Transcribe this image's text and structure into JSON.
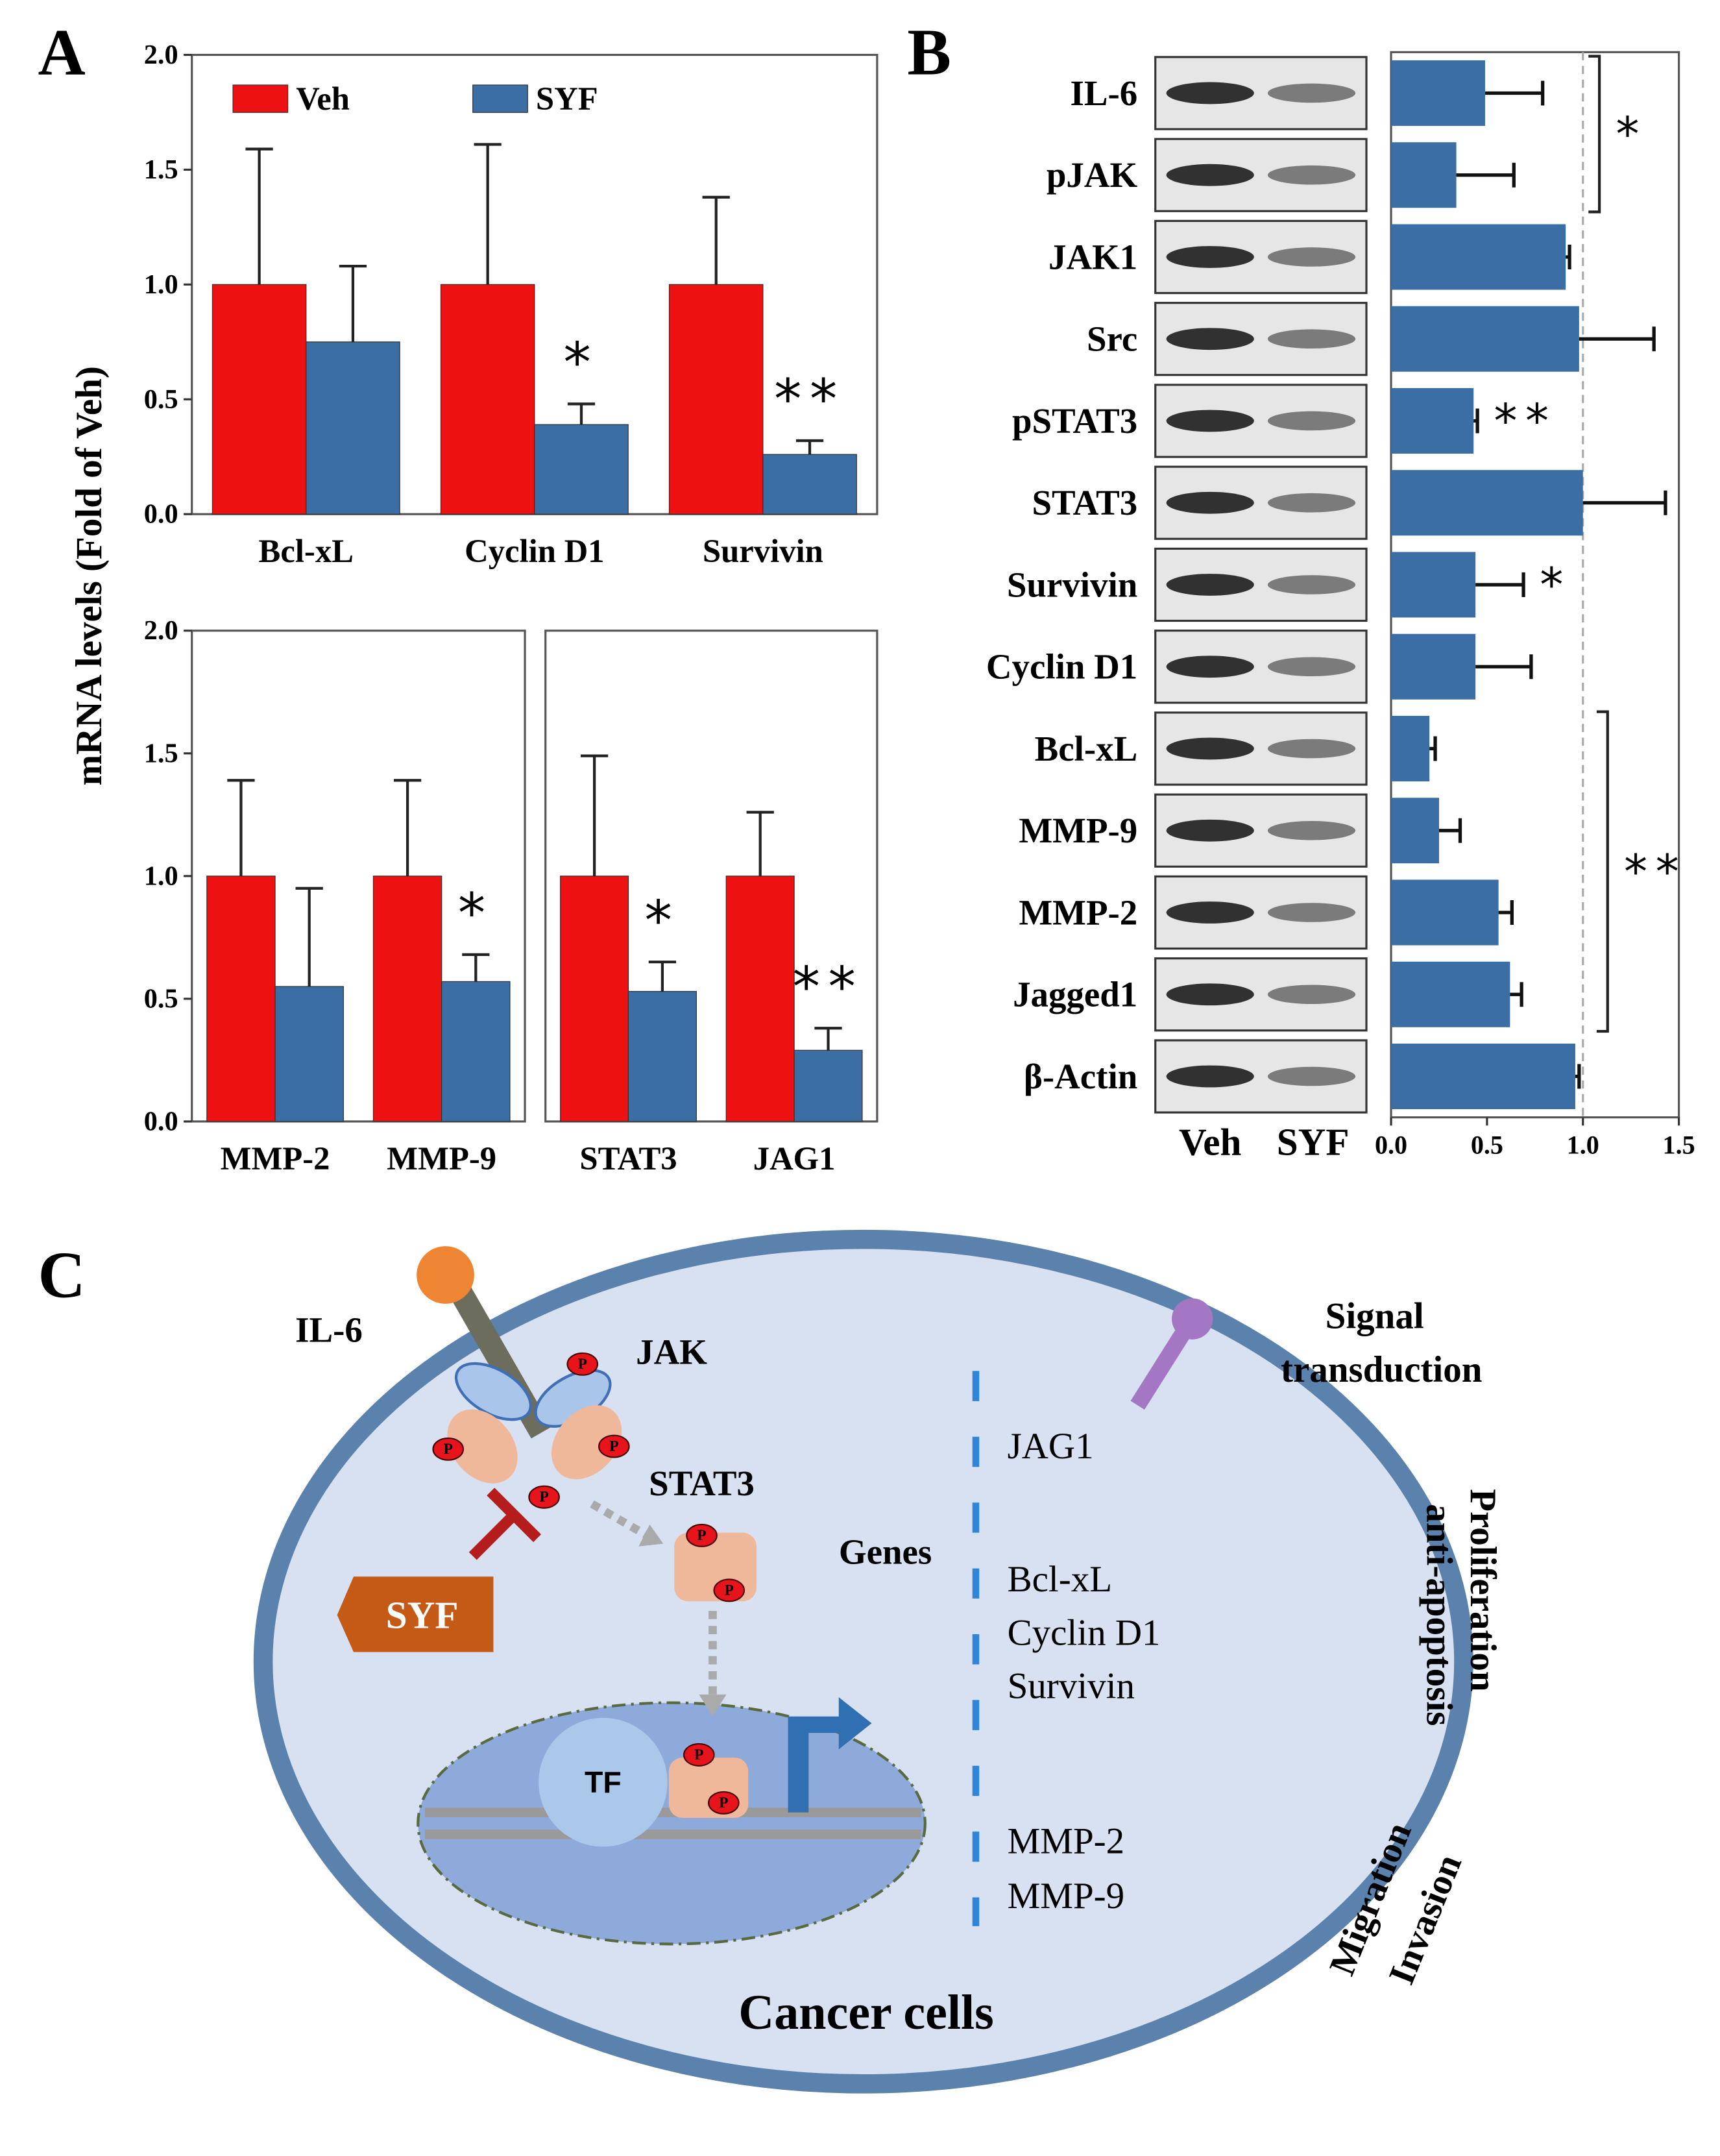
{
  "panel_labels": [
    "A",
    "B",
    "C"
  ],
  "y_axis_label": "mRNA levels (Fold of Veh)",
  "chart_data": [
    {
      "type": "bar",
      "categories": [
        "Bcl-xL",
        "Cyclin D1",
        "Survivin"
      ],
      "series": [
        {
          "name": "Veh",
          "color": "#ee1111",
          "values": [
            1.0,
            1.0,
            1.0
          ],
          "errors": [
            0.59,
            0.61,
            0.38
          ]
        },
        {
          "name": "SYF",
          "color": "#3a6ea5",
          "values": [
            0.75,
            0.39,
            0.26
          ],
          "errors": [
            0.33,
            0.09,
            0.06
          ],
          "significance": [
            null,
            "*",
            "**"
          ]
        }
      ],
      "ylim": [
        0,
        2.0
      ],
      "yticks": [
        {
          "value": 0,
          "label": "0.0"
        },
        0.5,
        {
          "value": 1.0,
          "label": "1.0"
        },
        1.5,
        {
          "value": 2.0,
          "label": "2.0"
        }
      ],
      "legend": "top"
    },
    {
      "type": "bar",
      "categories": [
        "MMP-2",
        "MMP-9"
      ],
      "series": [
        {
          "name": "Veh",
          "color": "#ee1111",
          "values": [
            1.0,
            1.0
          ],
          "errors": [
            0.39,
            0.39
          ]
        },
        {
          "name": "SYF",
          "color": "#3a6ea5",
          "values": [
            0.55,
            0.57
          ],
          "errors": [
            0.4,
            0.11
          ],
          "significance": [
            null,
            "*"
          ]
        }
      ],
      "ylim": [
        0,
        2.0
      ],
      "yticks": [
        {
          "value": 0,
          "label": "0.0"
        },
        0.5,
        {
          "value": 1.0,
          "label": "1.0"
        },
        1.5,
        {
          "value": 2.0,
          "label": "2.0"
        }
      ]
    },
    {
      "type": "bar",
      "categories": [
        "STAT3",
        "JAG1"
      ],
      "series": [
        {
          "name": "Veh",
          "color": "#ee1111",
          "values": [
            1.0,
            1.0
          ],
          "errors": [
            0.49,
            0.26
          ]
        },
        {
          "name": "SYF",
          "color": "#3a6ea5",
          "values": [
            0.53,
            0.29
          ],
          "errors": [
            0.12,
            0.09
          ],
          "significance": [
            "*",
            "**"
          ]
        }
      ],
      "ylim": [
        0,
        2.0
      ]
    },
    {
      "type": "barh",
      "categories": [
        "IL-6",
        "pJAK",
        "JAK1",
        "Src",
        "pSTAT3",
        "STAT3",
        "Survivin",
        "Cyclin D1",
        "Bcl-xL",
        "MMP-9",
        "MMP-2",
        "Jagged1",
        "β-Actin"
      ],
      "series": [
        {
          "color": "#3a6ea5",
          "values": [
            0.49,
            0.34,
            0.91,
            0.98,
            0.43,
            1.0,
            0.44,
            0.44,
            0.2,
            0.25,
            0.56,
            0.62,
            0.96
          ],
          "errors": [
            0.3,
            0.3,
            0.02,
            0.39,
            0.02,
            0.43,
            0.25,
            0.29,
            0.03,
            0.11,
            0.07,
            0.06,
            0.02
          ],
          "significance": [
            null,
            null,
            null,
            null,
            "**",
            null,
            "*",
            null,
            null,
            null,
            null,
            null,
            null
          ]
        }
      ],
      "brackets": [
        {
          "label": "*",
          "categories": [
            "IL-6",
            "pJAK"
          ]
        },
        {
          "label": "**",
          "categories": [
            "Bcl-xL",
            "Jagged1"
          ]
        }
      ],
      "xlim": [
        0,
        1.5
      ],
      "xticks": [
        {
          "value": 0,
          "label": "0.0"
        },
        0.5,
        {
          "value": 1.0,
          "label": "1.0"
        },
        1.5
      ],
      "reference_line": 1.0,
      "blot_lanes": [
        "Veh",
        "SYF"
      ]
    }
  ],
  "diagram": {
    "ligand": "IL-6",
    "kinase": "JAK",
    "factor": "STAT3",
    "inhibitor": "SYF",
    "genes_label": "Genes",
    "tf": "TF",
    "phospho": "P",
    "genes": [
      "JAG1",
      "Bcl-xL",
      "Cyclin D1",
      "Survivin",
      "MMP-2",
      "MMP-9"
    ],
    "cell": "Cancer cells",
    "outcomes": [
      [
        "Signal",
        "transduction"
      ],
      [
        "Proliferation",
        "anti-apoptosis"
      ],
      [
        "Migration",
        "Invasion"
      ]
    ]
  }
}
